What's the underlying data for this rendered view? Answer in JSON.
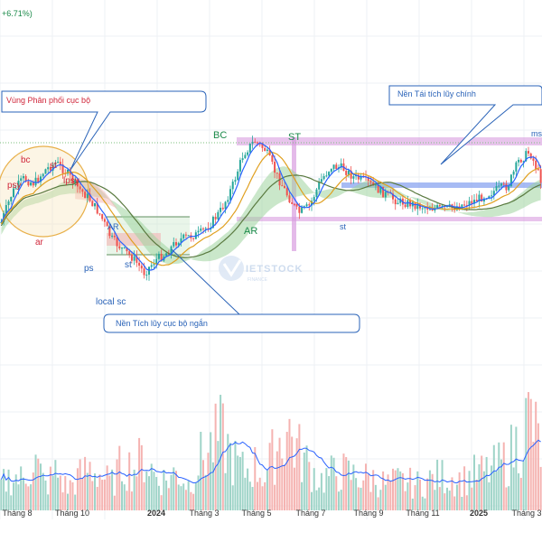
{
  "chart_data": {
    "type": "candlestick",
    "header_change": "+6.71%)",
    "x_tick_labels": [
      "Tháng 8",
      "Tháng 10",
      "2024",
      "Tháng 3",
      "Tháng 5",
      "Tháng 7",
      "Tháng 9",
      "Tháng 11",
      "2025",
      "Tháng 3"
    ],
    "callouts": {
      "distribution": "Vùng Phân phối cục bộ",
      "short_accumulation": "Nền Tích lũy cục bộ ngắn",
      "reaccumulation": "Nền Tái tích lũy chính"
    },
    "wyckoff_labels": {
      "psy": "psy",
      "bc": "bc",
      "st_top": "st",
      "lpsy": "lpsy",
      "ar": "ar",
      "ps": "ps",
      "local_sc": "local sc",
      "AR_small": "AR",
      "st_small": "st",
      "BC": "BC",
      "ST": "ST",
      "AR": "AR",
      "st_right": "st",
      "ms": "ms"
    },
    "watermark": "IETSTOCK",
    "colors": {
      "up": "#26a69a",
      "down": "#ef5350",
      "ma_fast": "#2962ff",
      "ma_mid": "#e0a020",
      "ma_slow": "#5a7a40",
      "cloud_up": "#9fd49f",
      "cloud_down": "#f4b4b4",
      "zone_purple": "#c87ad2",
      "zone_blue": "#6f8ee8",
      "volume_ma": "#2962ff",
      "callout": "#2a63b8",
      "circle": "#e8b04a"
    },
    "price_path": [
      12,
      45,
      60,
      55,
      70,
      78,
      66,
      50,
      38,
      20,
      -6,
      -18,
      -28,
      -44,
      -30,
      -22,
      -8,
      -4,
      -1,
      10,
      26,
      52,
      88,
      102,
      92,
      64,
      42,
      22,
      30,
      58,
      74,
      72,
      62,
      58,
      50,
      42,
      35,
      33,
      30,
      28,
      27,
      28,
      32,
      36,
      42,
      48,
      52,
      80,
      90,
      60
    ],
    "volume_path": [
      30,
      40,
      35,
      60,
      28,
      45,
      25,
      38,
      50,
      42,
      30,
      55,
      48,
      62,
      40,
      35,
      45,
      30,
      58,
      72,
      88,
      60,
      45,
      52,
      40,
      75,
      95,
      68,
      50,
      35,
      42,
      45,
      40,
      38,
      36,
      30,
      34,
      32,
      30,
      36,
      40,
      38,
      35,
      42,
      44,
      50,
      60,
      80,
      110,
      70
    ],
    "grid": true
  }
}
